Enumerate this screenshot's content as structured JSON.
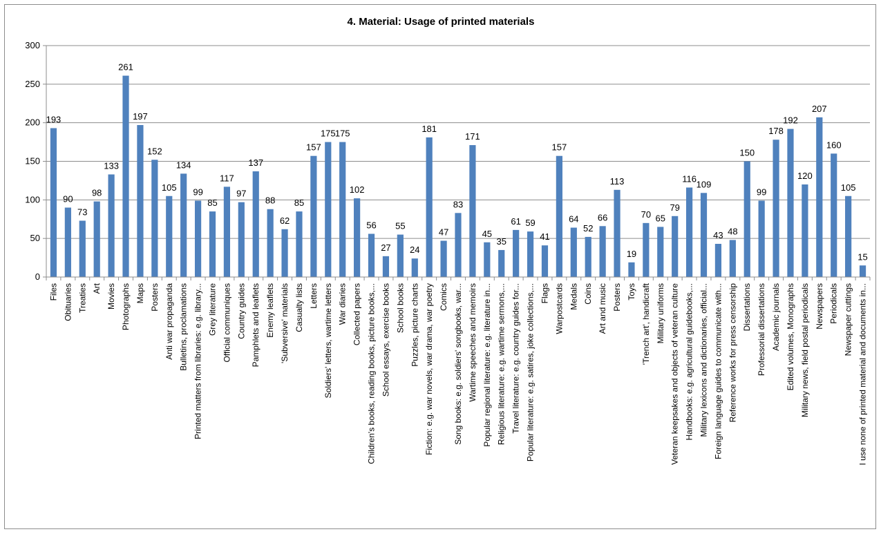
{
  "chart_data": {
    "type": "bar",
    "title": "4. Material: Usage of printed materials",
    "xlabel": "",
    "ylabel": "",
    "ylim": [
      0,
      300
    ],
    "yticks": [
      0,
      50,
      100,
      150,
      200,
      250,
      300
    ],
    "grid": true,
    "legend": "none",
    "bar_color": "#4f81bd",
    "categories": [
      "Files",
      "Obituaries",
      "Treaties",
      "Art",
      "Movies",
      "Photographs",
      "Maps",
      "Posters",
      "Anti war propaganda",
      "Bulletins, proclamations",
      "Printed matters from libraries: e.g. library...",
      "Grey literature",
      "Official communiques",
      "Country guides",
      "Pamphlets and leaflets",
      "Enemy leaflets",
      "'Subversive' materials",
      "Casualty lists",
      "Letters",
      "Soldiers' letters, wartime letters",
      "War diaries",
      "Collected papers",
      "Children's books, reading books, picture books,...",
      "School essays, exercise books",
      "School books",
      "Puzzles, picture charts",
      "Fiction: e.g. war novels, war drama, war poetry",
      "Comics",
      "Song books: e.g. soldiers' songbooks, war...",
      "Wartime speeches and memoirs",
      "Popular regional literature: e.g. literature in...",
      "Religious literature: e.g. wartime sermons,...",
      "Travel literature: e.g. country guides for...",
      "Popular literature: e.g. satires, joke collections,...",
      "Flags",
      "Warpostcards",
      "Medals",
      "Coins",
      "Art and music",
      "Posters",
      "Toys",
      "'Trench art', handicraft",
      "Military uniforms",
      "Veteran keepsakes and objects of veteran culture",
      "Handbooks: e.g. agricultural guidebooks,...",
      "Military lexicons and dictionaries, official...",
      "Foreign language guides to communicate with...",
      "Reference works for press censorship",
      "Dissertations",
      "Professorial dissertations",
      "Academic journals",
      "Edited volumes, Monographs",
      "Military news, field postal periodicals",
      "Newspapers",
      "Periodicals",
      "Newspaper cuttings",
      "I use none of printed material and documents in..."
    ],
    "values": [
      193,
      90,
      73,
      98,
      133,
      261,
      197,
      152,
      105,
      134,
      99,
      85,
      117,
      97,
      137,
      88,
      62,
      85,
      157,
      175,
      175,
      102,
      56,
      27,
      55,
      24,
      181,
      47,
      83,
      171,
      45,
      35,
      61,
      59,
      41,
      157,
      64,
      52,
      66,
      113,
      19,
      70,
      65,
      79,
      116,
      109,
      43,
      48,
      150,
      99,
      178,
      192,
      120,
      207,
      160,
      105,
      15
    ]
  }
}
